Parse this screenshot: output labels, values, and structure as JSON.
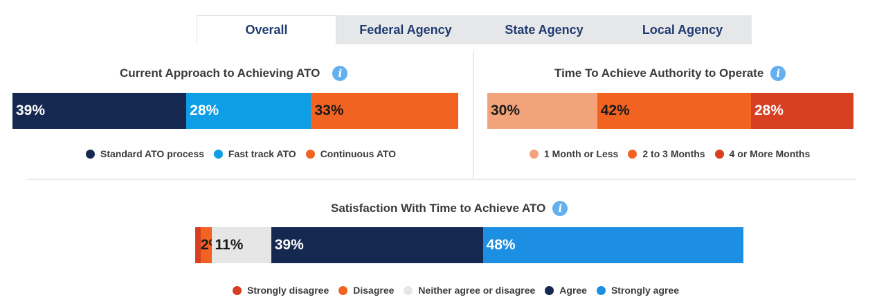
{
  "tabs": [
    {
      "label": "Overall",
      "active": true
    },
    {
      "label": "Federal Agency",
      "active": false
    },
    {
      "label": "State Agency",
      "active": false
    },
    {
      "label": "Local Agency",
      "active": false
    }
  ],
  "chart_data": [
    {
      "type": "bar",
      "orientation": "horizontal-stacked",
      "title": "Current Approach to Achieving ATO",
      "series": [
        {
          "name": "Standard ATO process",
          "value": 39,
          "label": "39%",
          "color": "#142850",
          "text_color": "#ffffff"
        },
        {
          "name": "Fast track ATO",
          "value": 28,
          "label": "28%",
          "color": "#0d9ee6",
          "text_color": "#ffffff"
        },
        {
          "name": "Continuous ATO",
          "value": 33,
          "label": "33%",
          "color": "#f26322",
          "text_color": "#1a1a1a"
        }
      ]
    },
    {
      "type": "bar",
      "orientation": "horizontal-stacked",
      "title": "Time To Achieve Authority to Operate",
      "series": [
        {
          "name": "1 Month or Less",
          "value": 30,
          "label": "30%",
          "color": "#f3a37a",
          "text_color": "#1a1a1a"
        },
        {
          "name": "2 to 3 Months",
          "value": 42,
          "label": "42%",
          "color": "#f26322",
          "text_color": "#1a1a1a"
        },
        {
          "name": "4 or More Months",
          "value": 28,
          "label": "28%",
          "color": "#d63f21",
          "text_color": "#ffffff"
        }
      ]
    },
    {
      "type": "bar",
      "orientation": "horizontal-stacked",
      "title": "Satisfaction With Time to Achieve ATO",
      "series": [
        {
          "name": "Strongly disagree",
          "value": 1,
          "label": "",
          "color": "#d63f21",
          "text_color": "#1a1a1a"
        },
        {
          "name": "Disagree",
          "value": 2,
          "label": "2%",
          "color": "#f26322",
          "text_color": "#1a1a1a"
        },
        {
          "name": "Neither agree or disagree",
          "value": 11,
          "label": "11%",
          "color": "#e6e6e6",
          "text_color": "#1a1a1a"
        },
        {
          "name": "Agree",
          "value": 39,
          "label": "39%",
          "color": "#142850",
          "text_color": "#ffffff"
        },
        {
          "name": "Strongly agree",
          "value": 48,
          "label": "48%",
          "color": "#1c8fe3",
          "text_color": "#ffffff"
        }
      ]
    }
  ]
}
